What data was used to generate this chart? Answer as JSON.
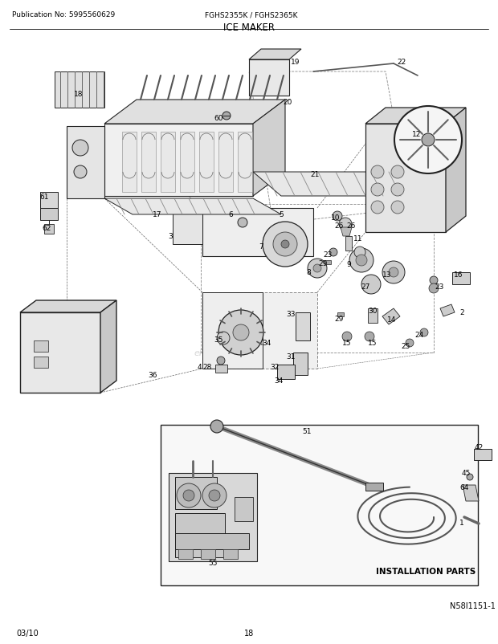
{
  "title": "ICE MAKER",
  "pub_no": "Publication No: 5995560629",
  "model": "FGHS2355K / FGHS2365K",
  "date": "03/10",
  "page": "18",
  "diagram_id": "N58I1151-1",
  "bg_color": "#ffffff",
  "text_color": "#000000",
  "fig_width": 6.2,
  "fig_height": 8.03,
  "dpi": 100
}
